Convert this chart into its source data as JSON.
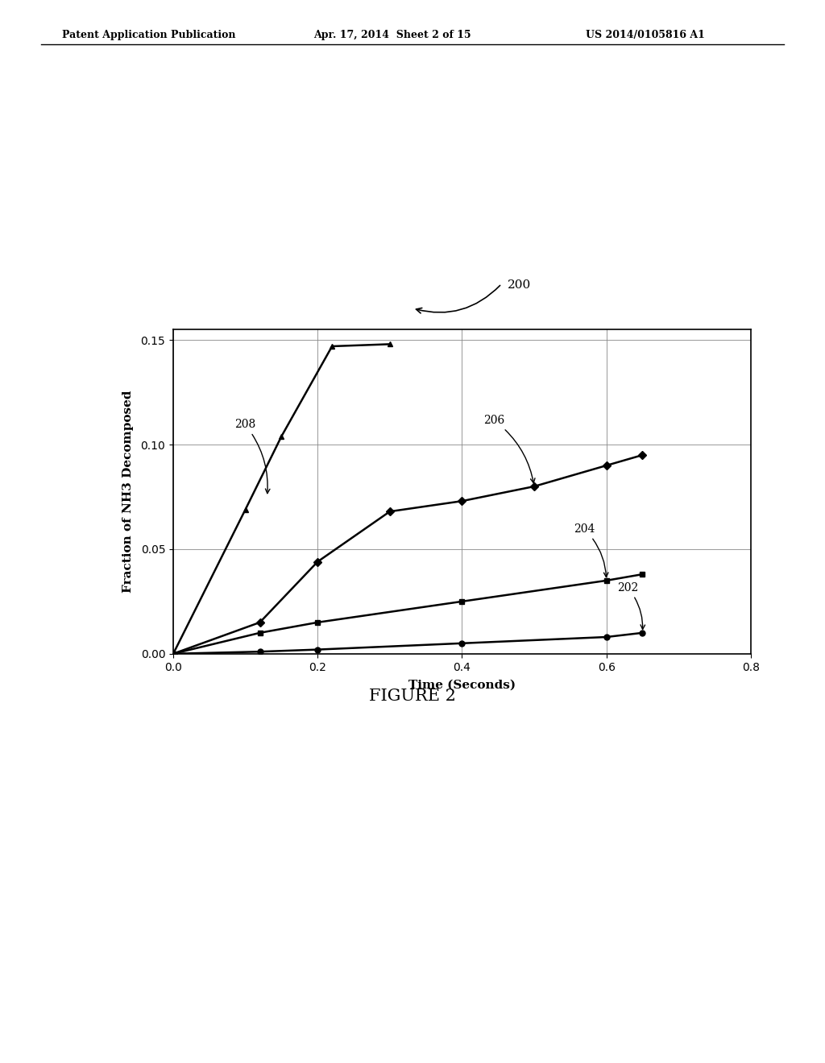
{
  "title": "FIGURE 2",
  "xlabel": "Time (Seconds)",
  "ylabel": "Fraction of NH3 Decomposed",
  "xlim": [
    0,
    0.8
  ],
  "ylim": [
    0,
    0.155
  ],
  "xticks": [
    0,
    0.2,
    0.4,
    0.6,
    0.8
  ],
  "yticks": [
    0,
    0.05,
    0.1,
    0.15
  ],
  "series_202": {
    "x": [
      0,
      0.12,
      0.2,
      0.4,
      0.6,
      0.65
    ],
    "y": [
      0,
      0.001,
      0.002,
      0.005,
      0.008,
      0.01
    ],
    "marker": "o"
  },
  "series_204": {
    "x": [
      0,
      0.12,
      0.2,
      0.4,
      0.6,
      0.65
    ],
    "y": [
      0,
      0.01,
      0.015,
      0.025,
      0.035,
      0.038
    ],
    "marker": "s"
  },
  "series_206": {
    "x": [
      0,
      0.12,
      0.2,
      0.3,
      0.4,
      0.5,
      0.6,
      0.65
    ],
    "y": [
      0,
      0.015,
      0.044,
      0.068,
      0.073,
      0.08,
      0.09,
      0.095
    ],
    "marker": "D"
  },
  "series_208": {
    "x": [
      0,
      0.1,
      0.15,
      0.22,
      0.3
    ],
    "y": [
      0,
      0.069,
      0.104,
      0.147,
      0.148
    ],
    "marker": "^"
  },
  "header_left": "Patent Application Publication",
  "header_center": "Apr. 17, 2014  Sheet 2 of 15",
  "header_right": "US 2014/0105816 A1",
  "bg_color": "#ffffff"
}
